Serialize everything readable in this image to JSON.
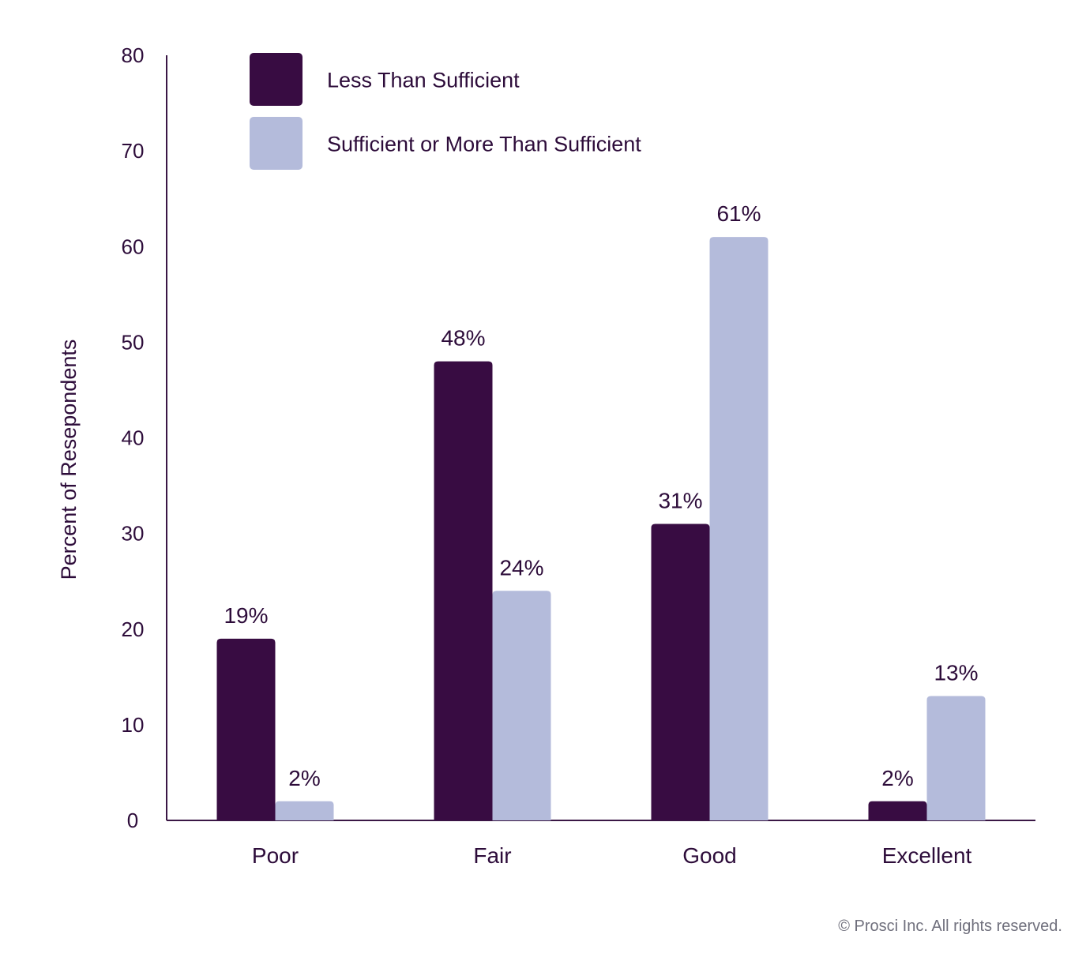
{
  "chart_data": {
    "type": "bar",
    "categories": [
      "Poor",
      "Fair",
      "Good",
      "Excellent"
    ],
    "series": [
      {
        "name": "Less Than Sufficient",
        "values": [
          19,
          48,
          31,
          2
        ],
        "labels": [
          "19%",
          "48%",
          "31%",
          "2%"
        ],
        "color": "#380c42"
      },
      {
        "name": "Sufficient or More Than Sufficient",
        "values": [
          2,
          24,
          61,
          13
        ],
        "labels": [
          "2%",
          "24%",
          "61%",
          "13%"
        ],
        "color": "#b4bbdb"
      }
    ],
    "ylabel": "Percent of Resepondents",
    "xlabel": "",
    "ylim": [
      0,
      80
    ],
    "yticks": [
      0,
      10,
      20,
      30,
      40,
      50,
      60,
      70,
      80
    ],
    "grid": false,
    "legend_position": "top-left",
    "text_color": "#2d0c3a",
    "axis_color": "#3a1745"
  },
  "footer": {
    "copyright": "© Prosci Inc. All rights reserved."
  }
}
